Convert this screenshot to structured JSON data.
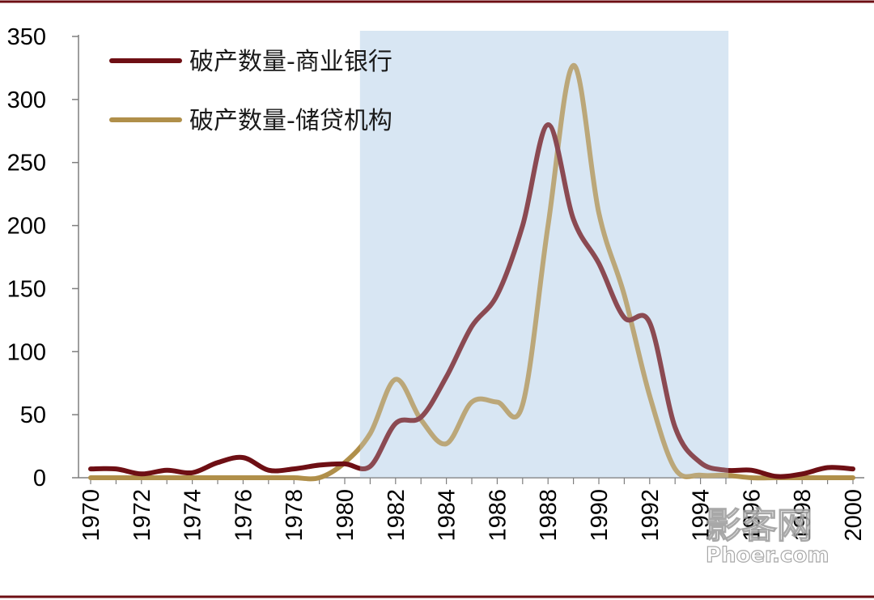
{
  "chart_data": {
    "type": "line",
    "title": "",
    "xlabel": "",
    "ylabel": "",
    "xlim": [
      1970,
      2000
    ],
    "ylim": [
      0,
      350
    ],
    "yticks": [
      0,
      50,
      100,
      150,
      200,
      250,
      300,
      350
    ],
    "xticks": [
      1970,
      1972,
      1974,
      1976,
      1978,
      1980,
      1982,
      1984,
      1986,
      1988,
      1990,
      1992,
      1994,
      1996,
      1998,
      2000
    ],
    "grid": false,
    "legend": "top-left",
    "shaded_region": {
      "x_start": 1980.6,
      "x_end": 1995.1,
      "color": "#d8e6f3"
    },
    "x": [
      1970,
      1971,
      1972,
      1973,
      1974,
      1975,
      1976,
      1977,
      1978,
      1979,
      1980,
      1981,
      1982,
      1983,
      1984,
      1985,
      1986,
      1987,
      1988,
      1989,
      1990,
      1991,
      1992,
      1993,
      1994,
      1995,
      1996,
      1997,
      1998,
      1999,
      2000
    ],
    "series": [
      {
        "name": "破产数量-商业银行",
        "color": "#6e0f14",
        "values": [
          7,
          7,
          3,
          6,
          4,
          12,
          16,
          6,
          7,
          10,
          11,
          9,
          43,
          48,
          80,
          120,
          145,
          200,
          280,
          205,
          170,
          127,
          123,
          40,
          12,
          6,
          6,
          1,
          3,
          8,
          7
        ]
      },
      {
        "name": "破产数量-储贷机构",
        "color": "#b08f4a",
        "values": [
          0,
          0,
          0,
          0,
          0,
          0,
          0,
          0,
          0,
          0,
          12,
          35,
          78,
          46,
          27,
          60,
          60,
          58,
          200,
          327,
          210,
          145,
          65,
          7,
          2,
          2,
          0,
          0,
          0,
          0,
          0
        ]
      }
    ]
  },
  "watermark": {
    "brand": "影客网",
    "domain": "Phoer.com"
  }
}
